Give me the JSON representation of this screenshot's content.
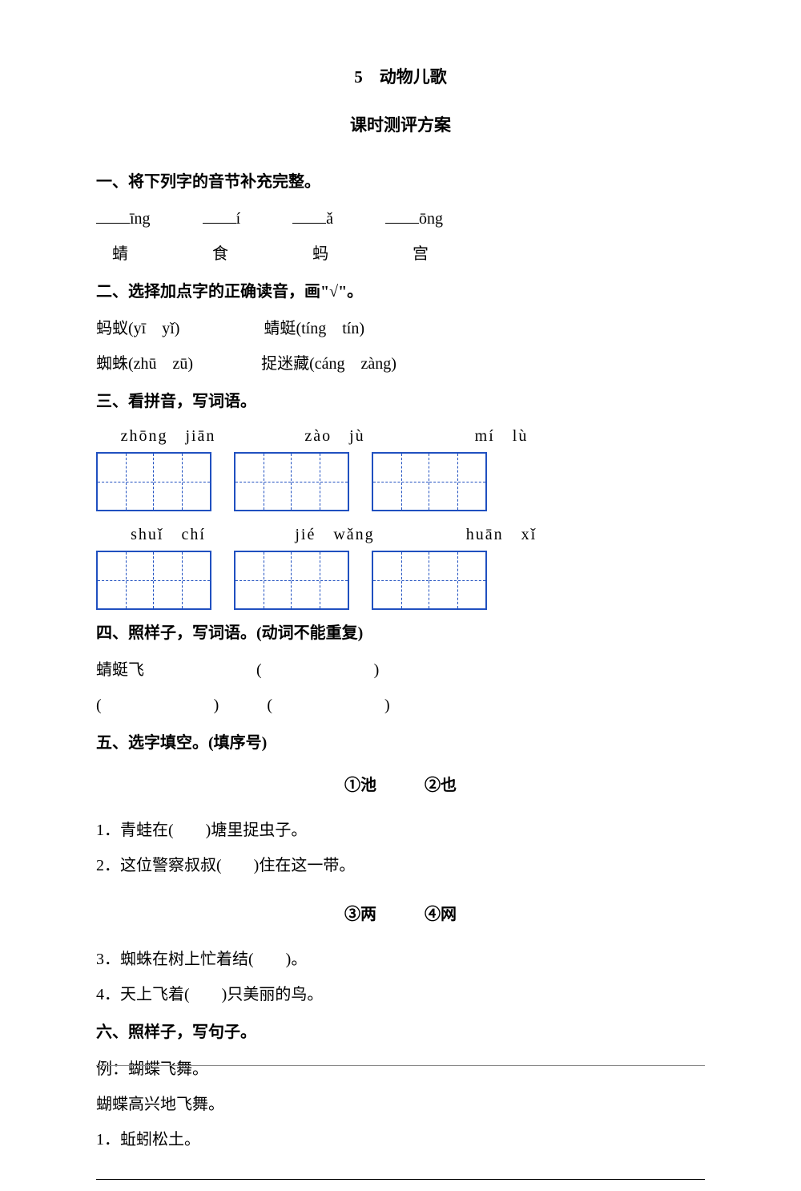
{
  "header": {
    "lesson_number": "5",
    "lesson_title": "动物儿歌",
    "subtitle": "课时测评方案"
  },
  "section1": {
    "heading": "一、将下列字的音节补充完整。",
    "pinyin_suffixes": [
      "īng",
      "í",
      "ǎ",
      "ōng"
    ],
    "chars": [
      "蜻",
      "食",
      "蚂",
      "宫"
    ]
  },
  "section2": {
    "heading": "二、选择加点字的正确读音，画\"√\"。",
    "items": [
      {
        "word": "蚂蚁",
        "opts": "(yī　yǐ)"
      },
      {
        "word": "蜻蜓",
        "opts": "(tíng　tín)"
      },
      {
        "word": "蜘蛛",
        "opts": "(zhū　zū)"
      },
      {
        "word": "捉迷藏",
        "opts": "(cáng　zàng)"
      }
    ]
  },
  "section3": {
    "heading": "三、看拼音，写词语。",
    "row1": [
      "zhōng　jiān",
      "zào　jù",
      "mí　lù"
    ],
    "row2": [
      "shuǐ　chí",
      "jié　wǎng",
      "huān　xǐ"
    ]
  },
  "section4": {
    "heading": "四、照样子，写词语。(动词不能重复)",
    "example": "蜻蜓飞"
  },
  "section5": {
    "heading": "五、选字填空。(填序号)",
    "group1": {
      "opt1": "①池",
      "opt2": "②也"
    },
    "q1": "1．青蛙在(　　)塘里捉虫子。",
    "q2": "2．这位警察叔叔(　　)住在这一带。",
    "group2": {
      "opt1": "③两",
      "opt2": "④网"
    },
    "q3": "3．蜘蛛在树上忙着结(　　)。",
    "q4": "4．天上飞着(　　)只美丽的鸟。"
  },
  "section6": {
    "heading": "六、照样子，写句子。",
    "example_label": "例：蝴蝶飞舞。",
    "example_sentence": "蝴蝶高兴地飞舞。",
    "q1": "1．蚯蚓松土。"
  }
}
